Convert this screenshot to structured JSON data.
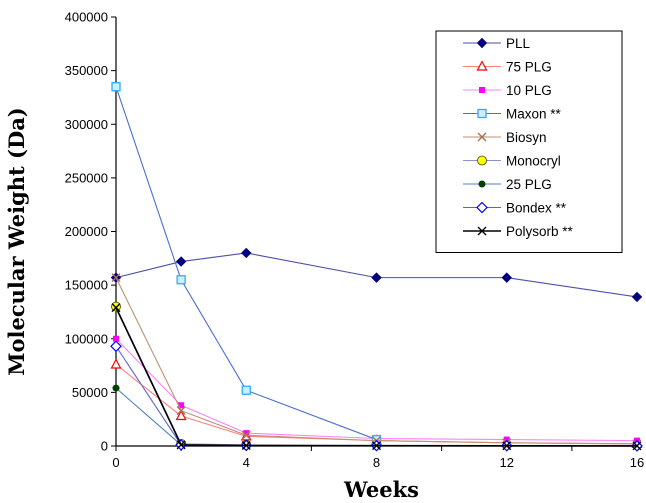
{
  "chart_data": {
    "type": "line",
    "title": "",
    "xlabel": "Weeks",
    "ylabel": "Molecular Weight (Da)",
    "xlim": [
      0,
      16
    ],
    "ylim": [
      0,
      400000
    ],
    "xticks": [
      0,
      4,
      8,
      12,
      16
    ],
    "yticks": [
      0,
      50000,
      100000,
      150000,
      200000,
      250000,
      300000,
      350000,
      400000
    ],
    "grid": false,
    "legend_position": "top-right",
    "series": [
      {
        "name": "PLL",
        "color": "#4a4fa8",
        "marker": "diamond-filled",
        "marker_color": "#000080",
        "x": [
          0,
          2,
          4,
          8,
          12,
          16
        ],
        "y": [
          157000,
          172000,
          180000,
          157000,
          157000,
          139000
        ]
      },
      {
        "name": "75 PLG",
        "color": "#ff8080",
        "marker": "triangle-open",
        "marker_color": "#ff0000",
        "x": [
          0,
          2,
          4,
          8,
          12,
          16
        ],
        "y": [
          76000,
          28000,
          9000,
          5000,
          3000,
          2000
        ]
      },
      {
        "name": "10 PLG",
        "color": "#ff80ff",
        "marker": "square-filled",
        "marker_color": "#ff00ff",
        "x": [
          0,
          2,
          4,
          8,
          12,
          16
        ],
        "y": [
          100000,
          38000,
          12000,
          7000,
          6000,
          5000
        ]
      },
      {
        "name": "Maxon **",
        "color": "#4a6fd0",
        "marker": "square-light",
        "marker_color": "#33aaff",
        "x": [
          0,
          2,
          4,
          8
        ],
        "y": [
          335000,
          155000,
          52000,
          6000
        ]
      },
      {
        "name": "Biosyn",
        "color": "#c09070",
        "marker": "x",
        "marker_color": "#b07050",
        "x": [
          0,
          2,
          4,
          8,
          12,
          16
        ],
        "y": [
          157000,
          33000,
          10000,
          5000,
          3000,
          2000
        ]
      },
      {
        "name": "Monocryl",
        "color": "#9090d0",
        "marker": "circle-yellow",
        "marker_color": "#ffff00",
        "x": [
          0,
          2,
          4
        ],
        "y": [
          130000,
          2000,
          1000
        ]
      },
      {
        "name": "25 PLG",
        "color": "#5080c0",
        "marker": "circle-filled",
        "marker_color": "#004000",
        "x": [
          0,
          2,
          4
        ],
        "y": [
          54000,
          1000,
          500
        ]
      },
      {
        "name": "Bondex **",
        "color": "#6060d0",
        "marker": "diamond-open",
        "marker_color": "#0000ff",
        "x": [
          0,
          2,
          4,
          8,
          12,
          16
        ],
        "y": [
          93000,
          1000,
          500,
          300,
          200,
          100
        ]
      },
      {
        "name": "Polysorb **",
        "color": "#000000",
        "marker": "x",
        "marker_color": "#000000",
        "x": [
          0,
          2,
          4,
          8,
          12,
          16
        ],
        "y": [
          129000,
          1000,
          500,
          300,
          200,
          100
        ]
      }
    ]
  }
}
